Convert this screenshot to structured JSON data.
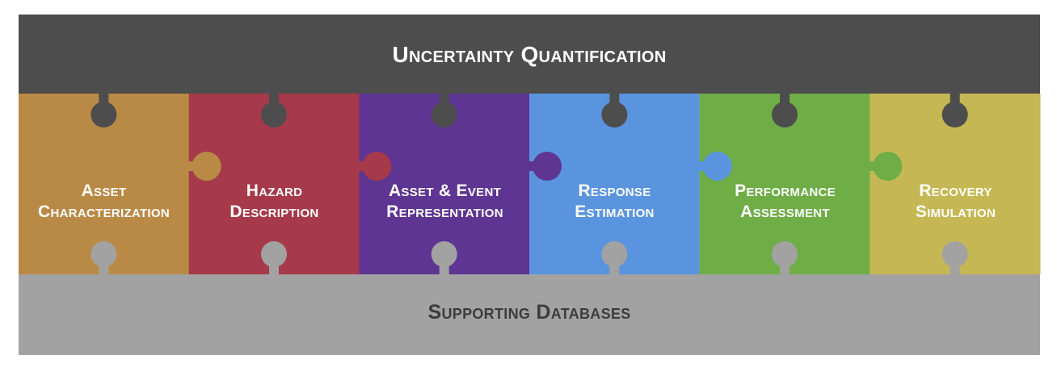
{
  "header": {
    "title": "Uncertainty Quantification"
  },
  "footer": {
    "title": "Supporting Databases"
  },
  "steps": [
    {
      "line1": "Asset",
      "line2": "Characterization",
      "color": "#b98a46"
    },
    {
      "line1": "Hazard",
      "line2": "Description",
      "color": "#a63a4b"
    },
    {
      "line1": "Asset & Event",
      "line2": "Representation",
      "color": "#5e3592"
    },
    {
      "line1": "Response",
      "line2": "Estimation",
      "color": "#5b94de"
    },
    {
      "line1": "Performance",
      "line2": "Assessment",
      "color": "#6fad47"
    },
    {
      "line1": "Recovery",
      "line2": "Simulation",
      "color": "#c5b854"
    }
  ],
  "colors": {
    "top_band": "#4d4d4d",
    "bottom_band": "#a2a2a2"
  }
}
